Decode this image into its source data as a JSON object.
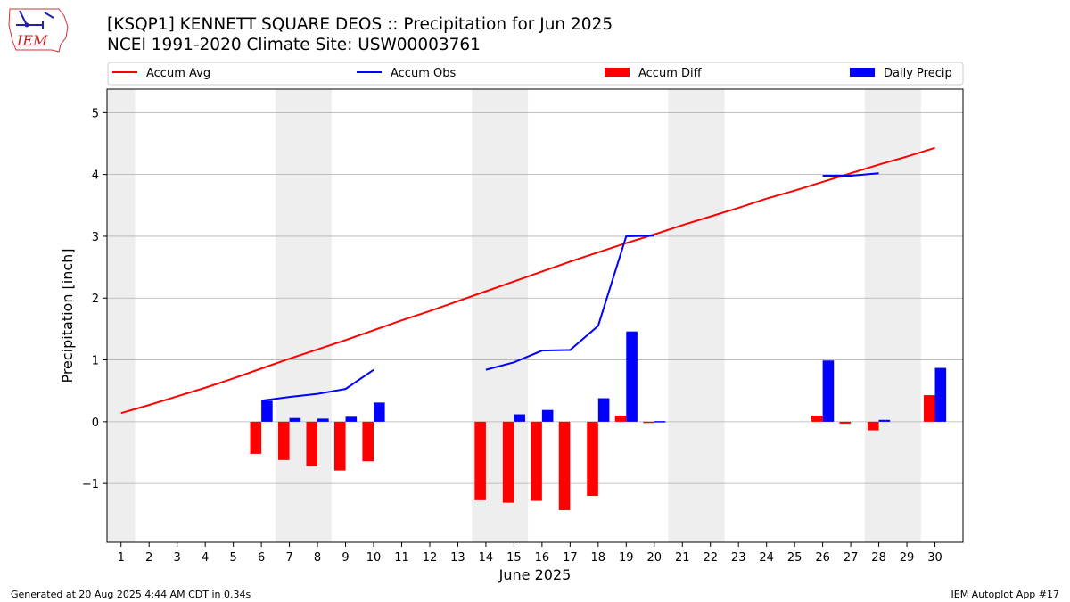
{
  "header": {
    "title_line1": "[KSQP1] KENNETT SQUARE DEOS :: Precipitation for Jun 2025",
    "title_line2": "NCEI 1991-2020 Climate Site: USW00003761",
    "logo_text": "IEM"
  },
  "footer": {
    "generated": "Generated at 20 Aug 2025 4:44 AM CDT in 0.34s",
    "app": "IEM Autoplot App #17"
  },
  "colors": {
    "accum_avg": "#ff0000",
    "accum_obs": "#0000ff",
    "accum_diff": "#ff0000",
    "daily_precip": "#0000ff",
    "weekend_shade": "#eeeeee",
    "grid": "#b0b0b0"
  },
  "chart_data": {
    "type": "bar",
    "xlabel": "June 2025",
    "ylabel": "Precipitation [inch]",
    "ylim": [
      -1.95,
      5.38
    ],
    "xlim": [
      0.5,
      31.0
    ],
    "yticks": [
      -1,
      0,
      1,
      2,
      3,
      4,
      5
    ],
    "ytick_labels": [
      "−1",
      "0",
      "1",
      "2",
      "3",
      "4",
      "5"
    ],
    "days": [
      1,
      2,
      3,
      4,
      5,
      6,
      7,
      8,
      9,
      10,
      11,
      12,
      13,
      14,
      15,
      16,
      17,
      18,
      19,
      20,
      21,
      22,
      23,
      24,
      25,
      26,
      27,
      28,
      29,
      30
    ],
    "grid": "horizontal",
    "legend_position": "top",
    "legend": [
      "Accum Avg",
      "Accum Obs",
      "Accum Diff",
      "Daily Precip"
    ],
    "weekend_spans": [
      [
        0.5,
        1.5
      ],
      [
        6.5,
        8.5
      ],
      [
        13.5,
        15.5
      ],
      [
        20.5,
        22.5
      ],
      [
        27.5,
        29.5
      ]
    ],
    "accum_avg": [
      0.14,
      0.27,
      0.41,
      0.55,
      0.7,
      0.86,
      1.02,
      1.17,
      1.32,
      1.48,
      1.64,
      1.79,
      1.95,
      2.11,
      2.27,
      2.43,
      2.59,
      2.74,
      2.89,
      3.03,
      3.18,
      3.32,
      3.46,
      3.61,
      3.74,
      3.88,
      4.02,
      4.16,
      4.29,
      4.43
    ],
    "accum_obs": [
      null,
      null,
      null,
      null,
      null,
      0.34,
      0.4,
      0.45,
      0.53,
      0.84,
      null,
      null,
      null,
      0.84,
      0.96,
      1.15,
      1.16,
      1.55,
      3.0,
      3.01,
      null,
      null,
      null,
      null,
      null,
      3.98,
      3.98,
      4.02,
      null,
      null
    ],
    "accum_diff": [
      null,
      null,
      null,
      null,
      null,
      -0.52,
      -0.62,
      -0.72,
      -0.79,
      -0.64,
      null,
      null,
      null,
      -1.27,
      -1.31,
      -1.28,
      -1.43,
      -1.2,
      0.1,
      -0.02,
      null,
      null,
      null,
      null,
      null,
      0.1,
      -0.03,
      -0.14,
      null,
      0.43
    ],
    "daily_precip": [
      null,
      null,
      null,
      null,
      null,
      0.34,
      0.06,
      0.05,
      0.08,
      0.31,
      null,
      null,
      null,
      null,
      0.12,
      0.19,
      null,
      0.38,
      1.46,
      0.01,
      null,
      null,
      null,
      null,
      null,
      0.99,
      null,
      0.03,
      null,
      0.87
    ]
  }
}
